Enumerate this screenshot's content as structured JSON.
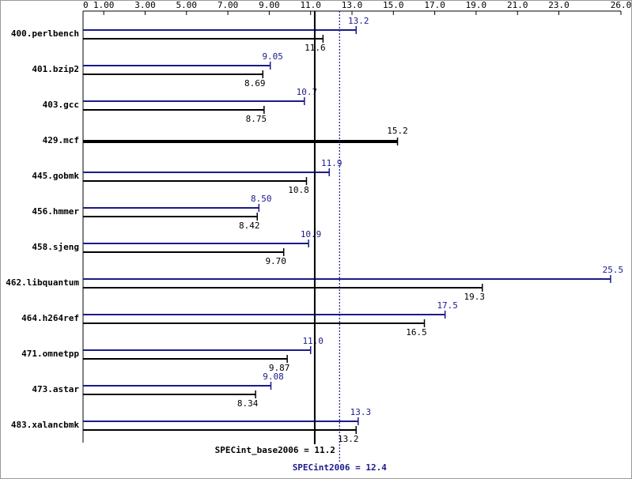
{
  "chart_data": {
    "type": "bar",
    "orientation": "horizontal",
    "categories": [
      "400.perlbench",
      "401.bzip2",
      "403.gcc",
      "429.mcf",
      "445.gobmk",
      "456.hmmer",
      "458.sjeng",
      "462.libquantum",
      "464.h264ref",
      "471.omnetpp",
      "473.astar",
      "483.xalancbmk"
    ],
    "series": [
      {
        "color": "#1a1a8c",
        "values": [
          13.2,
          9.05,
          10.7,
          null,
          11.9,
          8.5,
          10.9,
          25.5,
          17.5,
          11.0,
          9.08,
          13.3
        ],
        "value_labels": [
          "13.2",
          "9.05",
          "10.7",
          null,
          "11.9",
          "8.50",
          "10.9",
          "25.5",
          "17.5",
          "11.0",
          "9.08",
          "13.3"
        ]
      },
      {
        "color": "#000000",
        "values": [
          11.6,
          8.69,
          8.75,
          15.2,
          10.8,
          8.42,
          9.7,
          19.3,
          16.5,
          9.87,
          8.34,
          13.2
        ],
        "value_labels": [
          "11.6",
          "8.69",
          "8.75",
          "15.2",
          "10.8",
          "8.42",
          "9.70",
          "19.3",
          "16.5",
          "9.87",
          "8.34",
          "13.2"
        ]
      }
    ],
    "xlim": [
      0,
      26.0
    ],
    "xticks": [
      0,
      {
        "value": 1,
        "label": "1.00"
      },
      {
        "value": 3,
        "label": "3.00"
      },
      {
        "value": 5,
        "label": "5.00"
      },
      {
        "value": 7,
        "label": "7.00"
      },
      {
        "value": 9,
        "label": "9.00"
      },
      {
        "value": 11,
        "label": "11.0"
      },
      {
        "value": 13,
        "label": "13.0"
      },
      {
        "value": 15,
        "label": "15.0"
      },
      {
        "value": 17,
        "label": "17.0"
      },
      {
        "value": 19,
        "label": "19.0"
      },
      {
        "value": 21,
        "label": "21.0"
      },
      {
        "value": 23,
        "label": "23.0"
      },
      {
        "value": 26,
        "label": "26.0"
      }
    ],
    "reference_lines": [
      {
        "label": "SPECint_base2006 = 11.2",
        "value": 11.2,
        "color": "#000000",
        "dashed": false
      },
      {
        "label": "SPECint2006 = 12.4",
        "value": 12.4,
        "color": "#1a1a8c",
        "dashed": true
      }
    ]
  }
}
